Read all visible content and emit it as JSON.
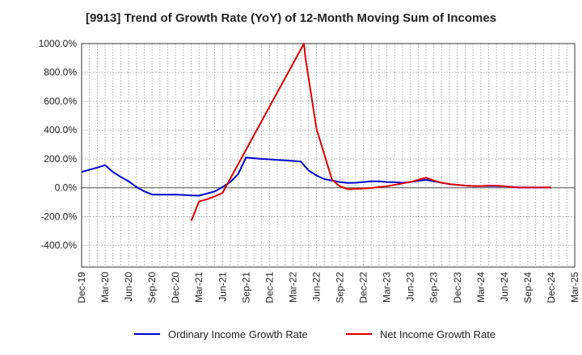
{
  "chart_data": {
    "type": "line",
    "title": "[9913]  Trend of Growth Rate (YoY) of 12-Month Moving Sum of Incomes",
    "xlabel": "",
    "ylabel": "",
    "ylim": [
      -550,
      1000
    ],
    "yticks": [
      1000,
      800,
      600,
      400,
      200,
      0,
      -200,
      -400
    ],
    "ytick_labels": [
      "1000.0%",
      "800.0%",
      "600.0%",
      "400.0%",
      "200.0%",
      "0.0%",
      "-200.0%",
      "-400.0%"
    ],
    "xtick_labels": [
      "Dec-19",
      "Mar-20",
      "Jun-20",
      "Sep-20",
      "Dec-20",
      "Mar-21",
      "Jun-21",
      "Sep-21",
      "Dec-21",
      "Mar-22",
      "Jun-22",
      "Sep-22",
      "Dec-22",
      "Mar-23",
      "Jun-23",
      "Sep-23",
      "Dec-23",
      "Mar-24",
      "Jun-24",
      "Sep-24",
      "Dec-24",
      "Mar-25"
    ],
    "grid": true,
    "legend_position": "bottom",
    "series": [
      {
        "name": "Ordinary Income Growth Rate",
        "color": "#0000cc",
        "points": [
          [
            0,
            110
          ],
          [
            1,
            125
          ],
          [
            2,
            140
          ],
          [
            3,
            157
          ],
          [
            4,
            110
          ],
          [
            5,
            75
          ],
          [
            6,
            45
          ],
          [
            7,
            5
          ],
          [
            8,
            -25
          ],
          [
            9,
            -47
          ],
          [
            10,
            -48
          ],
          [
            11,
            -48
          ],
          [
            12,
            -48
          ],
          [
            13,
            -50
          ],
          [
            14,
            -53
          ],
          [
            15,
            -55
          ],
          [
            16,
            -40
          ],
          [
            17,
            -25
          ],
          [
            18,
            5
          ],
          [
            19,
            40
          ],
          [
            20,
            95
          ],
          [
            21,
            210
          ],
          [
            22,
            205
          ],
          [
            23,
            200
          ],
          [
            24,
            197
          ],
          [
            25,
            193
          ],
          [
            26,
            190
          ],
          [
            27,
            186
          ],
          [
            28,
            182
          ],
          [
            29,
            120
          ],
          [
            30,
            85
          ],
          [
            31,
            60
          ],
          [
            32,
            50
          ],
          [
            33,
            40
          ],
          [
            34,
            33
          ],
          [
            35,
            35
          ],
          [
            36,
            40
          ],
          [
            37,
            45
          ],
          [
            38,
            45
          ],
          [
            39,
            40
          ],
          [
            40,
            38
          ],
          [
            41,
            35
          ],
          [
            42,
            40
          ],
          [
            43,
            48
          ],
          [
            44,
            55
          ],
          [
            45,
            45
          ],
          [
            46,
            35
          ],
          [
            47,
            25
          ],
          [
            48,
            20
          ],
          [
            49,
            15
          ],
          [
            50,
            12
          ],
          [
            51,
            12
          ],
          [
            52,
            12
          ],
          [
            53,
            12
          ],
          [
            54,
            10
          ],
          [
            55,
            5
          ],
          [
            56,
            2
          ],
          [
            57,
            2
          ],
          [
            58,
            2
          ],
          [
            59,
            2
          ],
          [
            60,
            3
          ]
        ]
      },
      {
        "name": "Net Income Growth Rate",
        "color": "#dd0000",
        "points": [
          [
            14,
            -230
          ],
          [
            15,
            -95
          ],
          [
            16,
            -80
          ],
          [
            17,
            -60
          ],
          [
            18,
            -35
          ],
          [
            28.4,
            1000
          ],
          [
            28.6,
            900
          ],
          [
            30,
            410
          ],
          [
            32,
            55
          ],
          [
            33,
            10
          ],
          [
            34,
            -10
          ],
          [
            35,
            -8
          ],
          [
            36,
            -5
          ],
          [
            37,
            -2
          ],
          [
            38,
            5
          ],
          [
            39,
            10
          ],
          [
            40,
            20
          ],
          [
            41,
            30
          ],
          [
            42,
            40
          ],
          [
            43,
            55
          ],
          [
            44,
            70
          ],
          [
            45,
            50
          ],
          [
            46,
            35
          ],
          [
            47,
            25
          ],
          [
            48,
            20
          ],
          [
            49,
            15
          ],
          [
            50,
            12
          ],
          [
            51,
            12
          ],
          [
            52,
            15
          ],
          [
            53,
            15
          ],
          [
            54,
            10
          ],
          [
            55,
            5
          ],
          [
            56,
            2
          ],
          [
            57,
            2
          ],
          [
            58,
            2
          ],
          [
            59,
            2
          ],
          [
            60,
            3
          ]
        ]
      }
    ]
  }
}
